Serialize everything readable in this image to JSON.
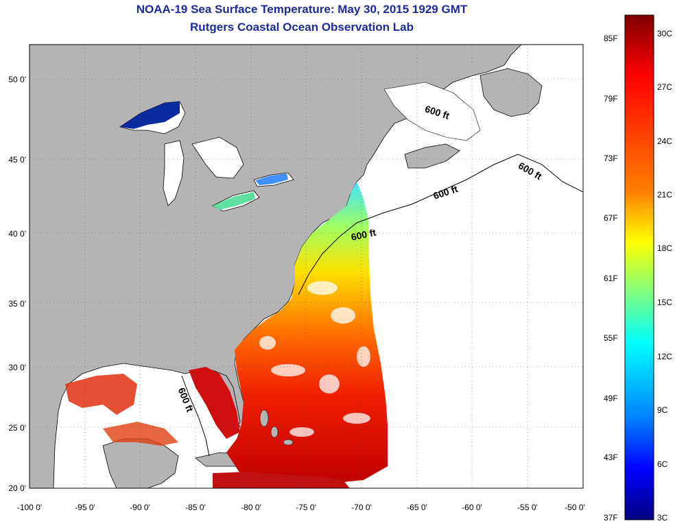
{
  "title_line1": "NOAA-19 Sea Surface Temperature:  May 30, 2015 1929 GMT",
  "title_line2": "Rutgers Coastal Ocean Observation Lab",
  "lat_labels": [
    "50 0'",
    "45 0'",
    "40 0'",
    "35 0'",
    "30 0'",
    "25 0'",
    "20 0'"
  ],
  "lon_labels": [
    "-100 0'",
    "-95 0'",
    "-90 0'",
    "-85 0'",
    "-80 0'",
    "-75 0'",
    "-70 0'",
    "-65 0'",
    "-60 0'",
    "-55 0'",
    "-50 0'"
  ],
  "colorbar": {
    "fahrenheit": [
      "85F",
      "79F",
      "73F",
      "67F",
      "61F",
      "55F",
      "49F",
      "43F",
      "37F"
    ],
    "celsius": [
      "30C",
      "27C",
      "24C",
      "21C",
      "18C",
      "15C",
      "12C",
      "9C",
      "6C",
      "3C"
    ]
  },
  "contour_label": "600 ft",
  "colors": {
    "title": "#1a2a9c",
    "land": "#b4b4b4",
    "no_data": "#ffffff"
  }
}
